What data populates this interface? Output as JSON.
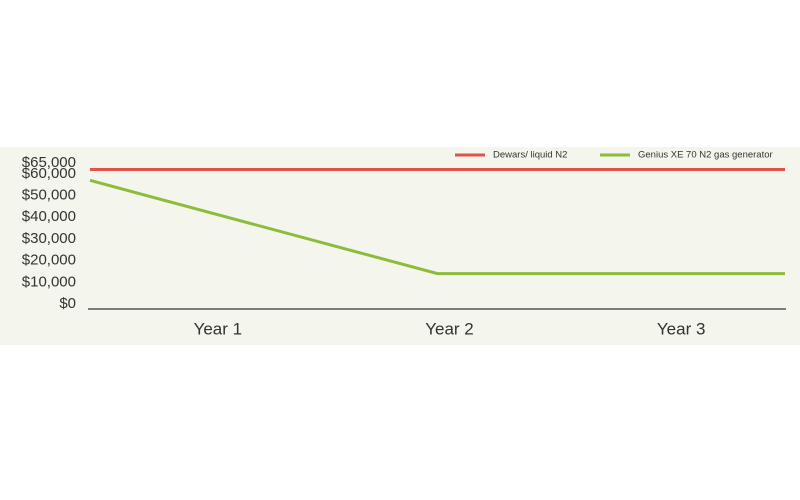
{
  "chart_data": {
    "type": "line",
    "categories": [
      "Year 1",
      "Year 2",
      "Year 3"
    ],
    "series": [
      {
        "name": "Dewars/ liquid N2",
        "color": "#e0534a",
        "values": [
          62000,
          62000,
          62000
        ]
      },
      {
        "name": "Genius XE 70 N2 gas generator",
        "color": "#8dbb3c",
        "values": [
          57000,
          14000,
          14000
        ]
      }
    ],
    "ylim": [
      0,
      65000
    ],
    "yticks": [
      {
        "value": 0,
        "label": "$0"
      },
      {
        "value": 10000,
        "label": "$10,000"
      },
      {
        "value": 20000,
        "label": "$20,000"
      },
      {
        "value": 30000,
        "label": "$30,000"
      },
      {
        "value": 40000,
        "label": "$40,000"
      },
      {
        "value": 50000,
        "label": "$50,000"
      },
      {
        "value": 60000,
        "label": "$60,000"
      },
      {
        "value": 65000,
        "label": "$65,000"
      }
    ],
    "grid": false,
    "legend": "top-right"
  }
}
